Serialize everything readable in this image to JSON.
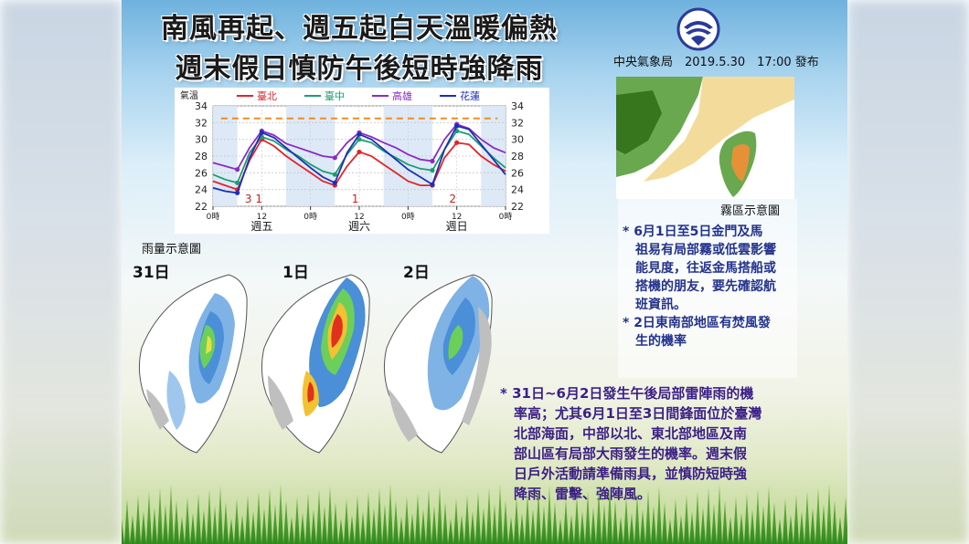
{
  "title": {
    "line1": "南風再起、週五起白天溫暖偏熱",
    "line2": "週末假日慎防午後短時強降雨"
  },
  "issuer": {
    "text": "中央氣象局　2019.5.30　17:00 發布"
  },
  "chart_data": {
    "type": "line",
    "ylabel": "氣溫",
    "ylim": [
      22,
      34
    ],
    "yticks": [
      22,
      24,
      26,
      28,
      30,
      32,
      34
    ],
    "x_range": [
      0,
      72
    ],
    "x_tick_labels": [
      {
        "x": 0,
        "label": "0時"
      },
      {
        "x": 12,
        "label": "12"
      },
      {
        "x": 24,
        "label": "0時"
      },
      {
        "x": 36,
        "label": "12"
      },
      {
        "x": 48,
        "label": "0時"
      },
      {
        "x": 60,
        "label": "12"
      },
      {
        "x": 72,
        "label": "0時"
      }
    ],
    "day_labels": [
      {
        "x": 12,
        "label": "週五"
      },
      {
        "x": 36,
        "label": "週六"
      },
      {
        "x": 60,
        "label": "週日"
      }
    ],
    "date_labels": [
      {
        "x": 10,
        "label": "3 1"
      },
      {
        "x": 35,
        "label": "1"
      },
      {
        "x": 59,
        "label": "2"
      }
    ],
    "reference_line": 32.5,
    "series": [
      {
        "name": "臺北",
        "color": "#e0242a",
        "x": [
          0,
          3,
          6,
          9,
          12,
          15,
          18,
          21,
          24,
          27,
          30,
          33,
          36,
          39,
          42,
          45,
          48,
          51,
          54,
          57,
          60,
          63,
          66,
          69,
          72
        ],
        "y": [
          25.0,
          24.5,
          24.0,
          27.5,
          30.0,
          29.2,
          28.0,
          27.0,
          26.0,
          25.0,
          24.5,
          26.8,
          28.5,
          28.0,
          27.0,
          26.0,
          25.0,
          24.5,
          24.5,
          27.8,
          29.6,
          29.4,
          28.0,
          27.0,
          26.2
        ]
      },
      {
        "name": "臺中",
        "color": "#1a9e6e",
        "x": [
          0,
          3,
          6,
          9,
          12,
          15,
          18,
          21,
          24,
          27,
          30,
          33,
          36,
          39,
          42,
          45,
          48,
          51,
          54,
          57,
          60,
          63,
          66,
          69,
          72
        ],
        "y": [
          25.8,
          25.2,
          24.8,
          28.4,
          30.3,
          29.8,
          28.8,
          28.0,
          27.0,
          26.2,
          25.8,
          28.2,
          30.0,
          29.6,
          28.6,
          27.8,
          27.0,
          26.5,
          26.3,
          28.8,
          31.0,
          30.6,
          29.2,
          27.8,
          26.6
        ]
      },
      {
        "name": "高雄",
        "color": "#8a2bc4",
        "x": [
          0,
          3,
          6,
          9,
          12,
          15,
          18,
          21,
          24,
          27,
          30,
          33,
          36,
          39,
          42,
          45,
          48,
          51,
          54,
          57,
          60,
          63,
          66,
          69,
          72
        ],
        "y": [
          27.2,
          26.8,
          26.4,
          29.0,
          31.0,
          30.5,
          29.5,
          29.0,
          28.5,
          28.0,
          27.8,
          29.6,
          30.8,
          30.3,
          29.6,
          29.0,
          28.2,
          27.6,
          27.4,
          30.0,
          31.8,
          31.3,
          30.0,
          29.0,
          28.4
        ]
      },
      {
        "name": "花蓮",
        "color": "#1c2fb8",
        "x": [
          0,
          3,
          6,
          9,
          12,
          15,
          18,
          21,
          24,
          27,
          30,
          33,
          36,
          39,
          42,
          45,
          48,
          51,
          54,
          57,
          60,
          63,
          66,
          69,
          72
        ],
        "y": [
          24.2,
          23.8,
          23.6,
          27.8,
          30.8,
          30.2,
          29.0,
          27.8,
          26.6,
          25.5,
          24.8,
          28.4,
          30.6,
          30.0,
          28.8,
          27.6,
          26.4,
          25.5,
          24.6,
          28.8,
          31.6,
          31.2,
          29.4,
          27.6,
          25.8
        ]
      }
    ]
  },
  "fog": {
    "label": "霧區示意圖",
    "lines": [
      "*  6月1日至5日金門及馬",
      "　祖易有局部霧或低雲影響",
      "　能見度，往返金馬搭船或",
      "　搭機的朋友，要先確認航",
      "　班資訊。",
      "* 2日東南部地區有焚風發",
      "　生的機率"
    ]
  },
  "rain": {
    "label": "雨量示意圖",
    "days": [
      "31日",
      "1日",
      "2日"
    ],
    "lines": [
      "*  31日~6月2日發生午後局部雷陣雨的機",
      "　率高；尤其6月1日至3日間鋒面位於臺灣",
      "　北部海面，中部以北、東北部地區及南",
      "　部山區有局部大雨發生的機率。週末假",
      "　日戶外活動請準備雨具，並慎防短時強",
      "　降雨、雷擊、強陣風。"
    ]
  }
}
